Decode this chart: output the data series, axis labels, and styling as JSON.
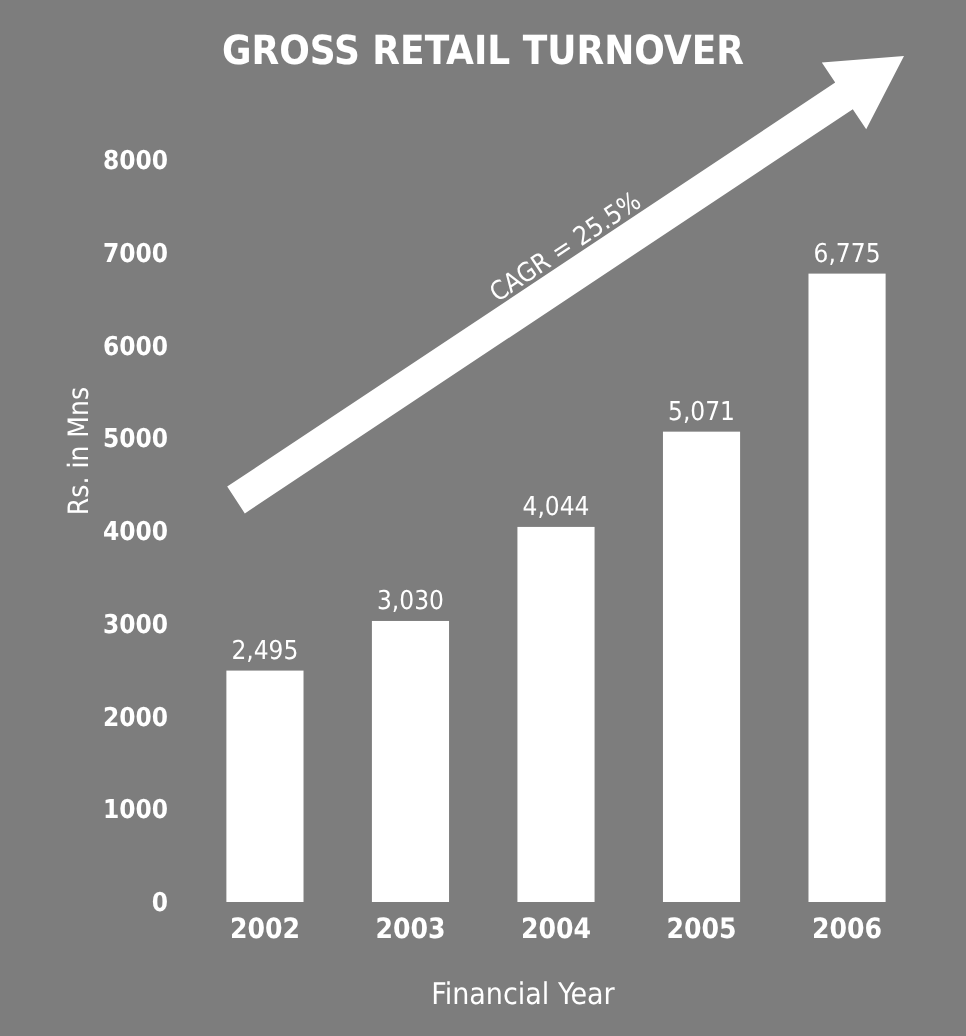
{
  "chart_data": {
    "type": "bar",
    "title": "GROSS RETAIL TURNOVER",
    "xlabel": "Financial Year",
    "ylabel": "Rs. in Mns",
    "categories": [
      "2002",
      "2003",
      "2004",
      "2005",
      "2006"
    ],
    "values": [
      2495,
      3030,
      4044,
      5071,
      6775
    ],
    "value_labels": [
      "2,495",
      "3,030",
      "4,044",
      "5,071",
      "6,775"
    ],
    "color": "#ffffff",
    "ylim": [
      0,
      8000
    ],
    "yticks": [
      0,
      1000,
      2000,
      3000,
      4000,
      5000,
      6000,
      7000,
      8000
    ],
    "grid": false,
    "annotations": [
      "CAGR = 25.5%"
    ]
  }
}
